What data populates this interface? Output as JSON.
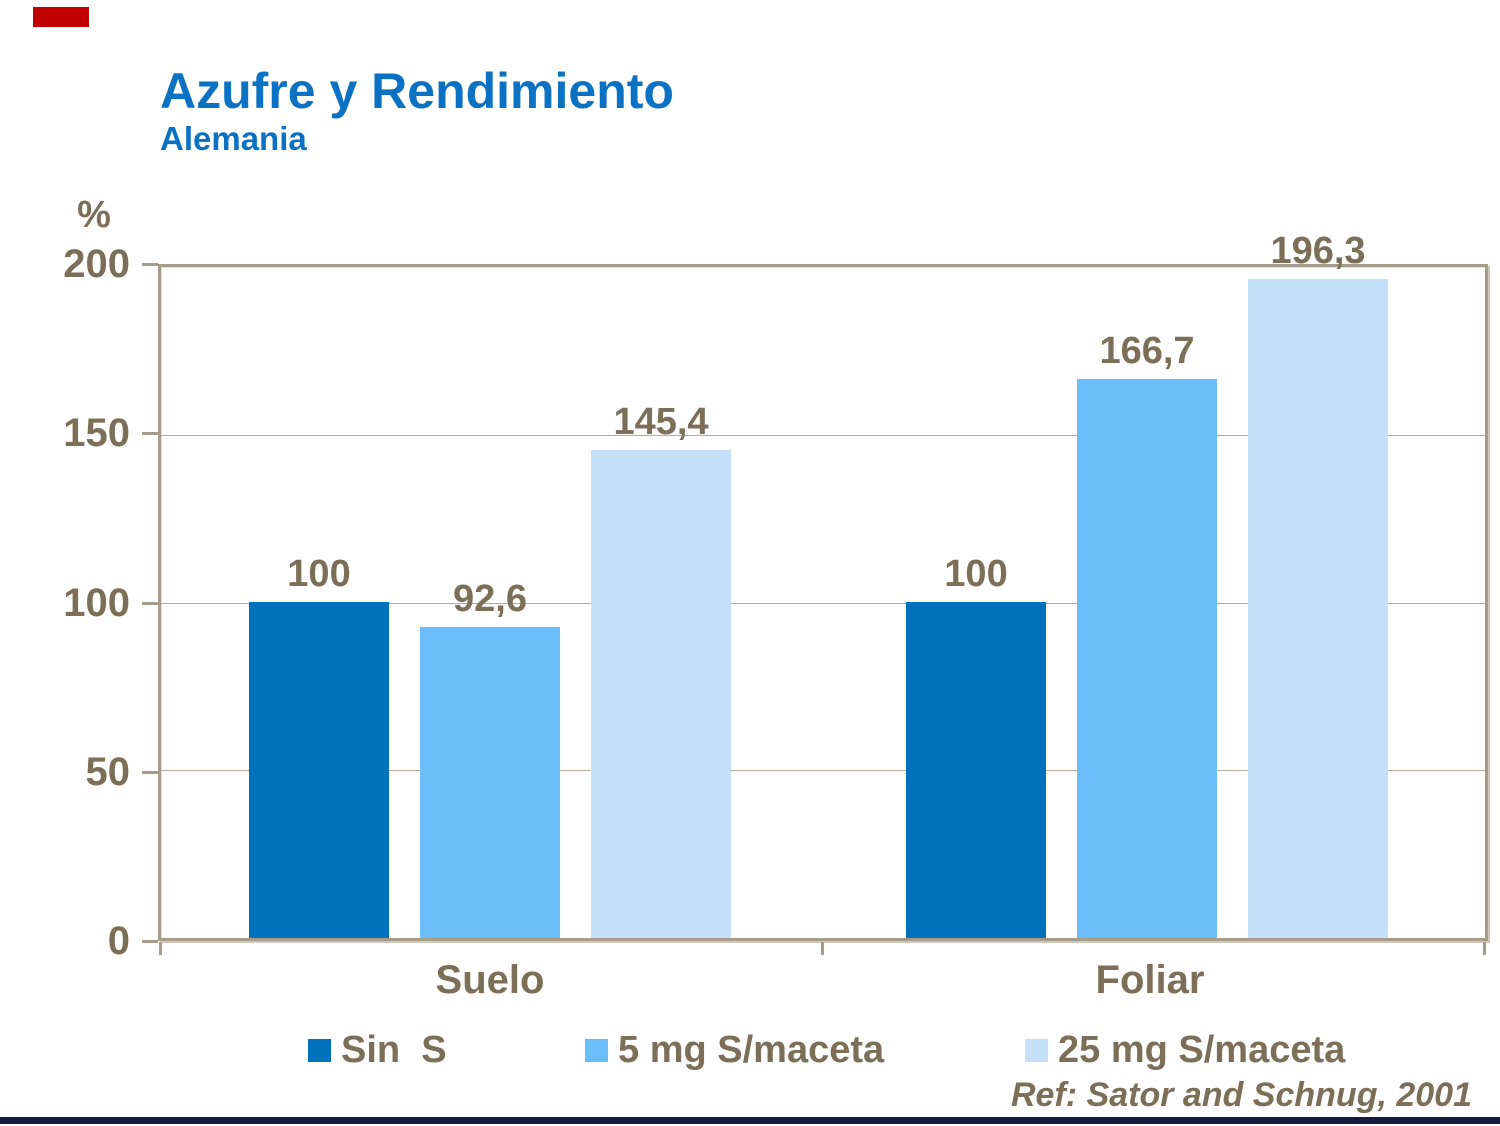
{
  "slide": {
    "title": "Azufre y Rendimiento",
    "subtitle": "Alemania",
    "unit_label": "%",
    "reference": "Ref: Sator and Schnug, 2001",
    "colors": {
      "title_blue": "#0B72C3",
      "text_brown": "#7D6E58",
      "frame_taupe": "#A79B89",
      "gridline": "#B5AA9A",
      "accent_red": "#C00000",
      "footer_navy": "#151B41"
    }
  },
  "chart_data": {
    "type": "bar",
    "title": "Azufre y Rendimiento",
    "subtitle": "Alemania",
    "xlabel": "",
    "ylabel": "%",
    "ylim": [
      0,
      200
    ],
    "yticks": [
      0,
      50,
      100,
      150,
      200
    ],
    "ytick_labels": [
      "0",
      "50",
      "100",
      "150",
      "200"
    ],
    "grid": true,
    "legend_position": "bottom",
    "categories": [
      "Suelo",
      "Foliar"
    ],
    "series": [
      {
        "name": "Sin  S",
        "color": "#0071BD",
        "values": [
          100,
          100
        ],
        "value_labels": [
          "100",
          "100"
        ]
      },
      {
        "name": "5 mg S/maceta",
        "color": "#6BBDFA",
        "values": [
          92.6,
          166.7
        ],
        "value_labels": [
          "92,6",
          "166,7"
        ]
      },
      {
        "name": "25 mg S/maceta",
        "color": "#C5E0FA",
        "values": [
          145.4,
          196.3
        ],
        "value_labels": [
          "145,4",
          "196,3"
        ]
      }
    ],
    "reference": "Ref: Sator and Schnug, 2001"
  }
}
